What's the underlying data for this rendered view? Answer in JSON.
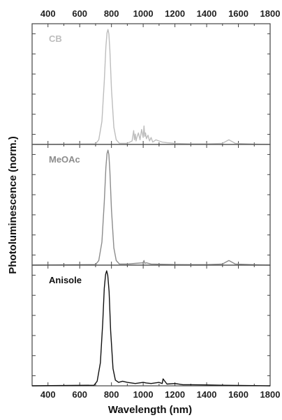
{
  "chart_data": {
    "type": "line",
    "xlabel": "Wavelength (nm)",
    "ylabel": "Photoluminescence (norm.)",
    "xlim": [
      300,
      1800
    ],
    "xticks": [
      "400",
      "600",
      "800",
      "1000",
      "1200",
      "1400",
      "1600",
      "1800"
    ],
    "ylim": [
      0,
      1.05
    ],
    "y_tick_count_per_panel": 6,
    "y_tick_labels_shown": false,
    "shared_x_axis": true,
    "x_tick_labels_top_and_bottom": true,
    "panels": [
      {
        "label": "CB",
        "color": "#bdbdbd",
        "series": [
          {
            "name": "CB",
            "peak_x": 780,
            "peak_y": 1.0,
            "fwhm_nm": 45,
            "x": [
              300,
              700,
              720,
              740,
              755,
              765,
              772,
              778,
              784,
              790,
              800,
              815,
              830,
              850,
              900,
              930,
              940,
              945,
              950,
              955,
              960,
              970,
              980,
              990,
              1000,
              1005,
              1010,
              1015,
              1020,
              1030,
              1040,
              1050,
              1060,
              1080,
              1100,
              1120,
              1150,
              1200,
              1300,
              1400,
              1500,
              1520,
              1540,
              1560,
              1580,
              1700,
              1800
            ],
            "y": [
              0,
              0.005,
              0.04,
              0.2,
              0.55,
              0.85,
              0.97,
              1.0,
              0.96,
              0.82,
              0.48,
              0.15,
              0.04,
              0.01,
              0.01,
              0.03,
              0.12,
              0.04,
              0.09,
              0.03,
              0.06,
              0.1,
              0.04,
              0.13,
              0.06,
              0.16,
              0.07,
              0.1,
              0.05,
              0.08,
              0.03,
              0.06,
              0.02,
              0.04,
              0.03,
              0.02,
              0.015,
              0.01,
              0.005,
              0.005,
              0.01,
              0.025,
              0.04,
              0.025,
              0.01,
              0.003,
              0
            ]
          }
        ]
      },
      {
        "label": "MeOAc",
        "color": "#8c8c8c",
        "series": [
          {
            "name": "MeOAc",
            "peak_x": 780,
            "peak_y": 1.0,
            "fwhm_nm": 45,
            "x": [
              300,
              700,
              720,
              740,
              755,
              765,
              772,
              778,
              784,
              790,
              800,
              815,
              830,
              850,
              900,
              950,
              1000,
              1005,
              1010,
              1020,
              1050,
              1100,
              1200,
              1300,
              1400,
              1500,
              1520,
              1540,
              1560,
              1580,
              1700,
              1800
            ],
            "y": [
              0,
              0.005,
              0.04,
              0.2,
              0.55,
              0.85,
              0.97,
              1.0,
              0.96,
              0.82,
              0.48,
              0.15,
              0.04,
              0.01,
              0.01,
              0.015,
              0.02,
              0.04,
              0.015,
              0.02,
              0.01,
              0.008,
              0.005,
              0.004,
              0.004,
              0.01,
              0.025,
              0.04,
              0.025,
              0.01,
              0.003,
              0
            ]
          }
        ]
      },
      {
        "label": "Anisole",
        "color": "#111111",
        "series": [
          {
            "name": "Anisole",
            "peak_x": 770,
            "peak_y": 1.0,
            "fwhm_nm": 50,
            "x": [
              300,
              690,
              710,
              730,
              745,
              755,
              763,
              770,
              777,
              785,
              795,
              810,
              825,
              845,
              870,
              900,
              950,
              1000,
              1020,
              1050,
              1100,
              1120,
              1125,
              1150,
              1200,
              1250,
              1300,
              1400,
              1500,
              1600,
              1700,
              1800
            ],
            "y": [
              0,
              0.005,
              0.04,
              0.2,
              0.55,
              0.85,
              0.97,
              1.0,
              0.96,
              0.82,
              0.48,
              0.15,
              0.05,
              0.03,
              0.04,
              0.03,
              0.02,
              0.03,
              0.025,
              0.02,
              0.03,
              0.02,
              0.06,
              0.015,
              0.02,
              0.01,
              0.01,
              0.008,
              0.005,
              0.003,
              0.002,
              0
            ]
          }
        ]
      }
    ]
  }
}
